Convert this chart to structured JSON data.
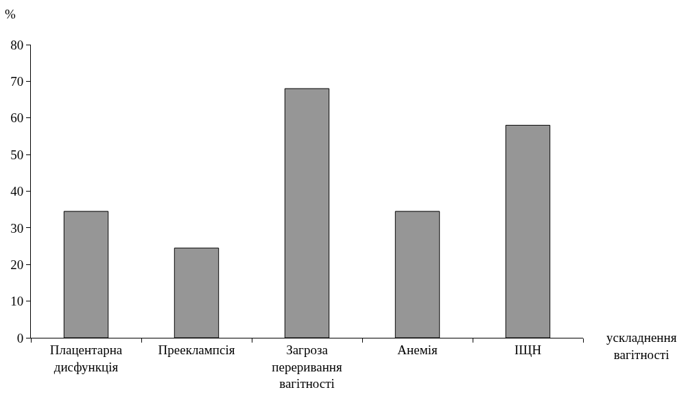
{
  "chart_data": {
    "type": "bar",
    "ylabel": "%",
    "xlabel": "ускладнення вагітності",
    "categories": [
      "Плацентарна дисфункція",
      "Прееклампсія",
      "Загроза переривання вагітності",
      "Анемія",
      "ІЩН"
    ],
    "values": [
      34.5,
      24.5,
      68,
      34.5,
      58
    ],
    "color": "#969696",
    "ylim": [
      0,
      80
    ],
    "yticks": [
      0,
      10,
      20,
      30,
      40,
      50,
      60,
      70,
      80
    ]
  }
}
